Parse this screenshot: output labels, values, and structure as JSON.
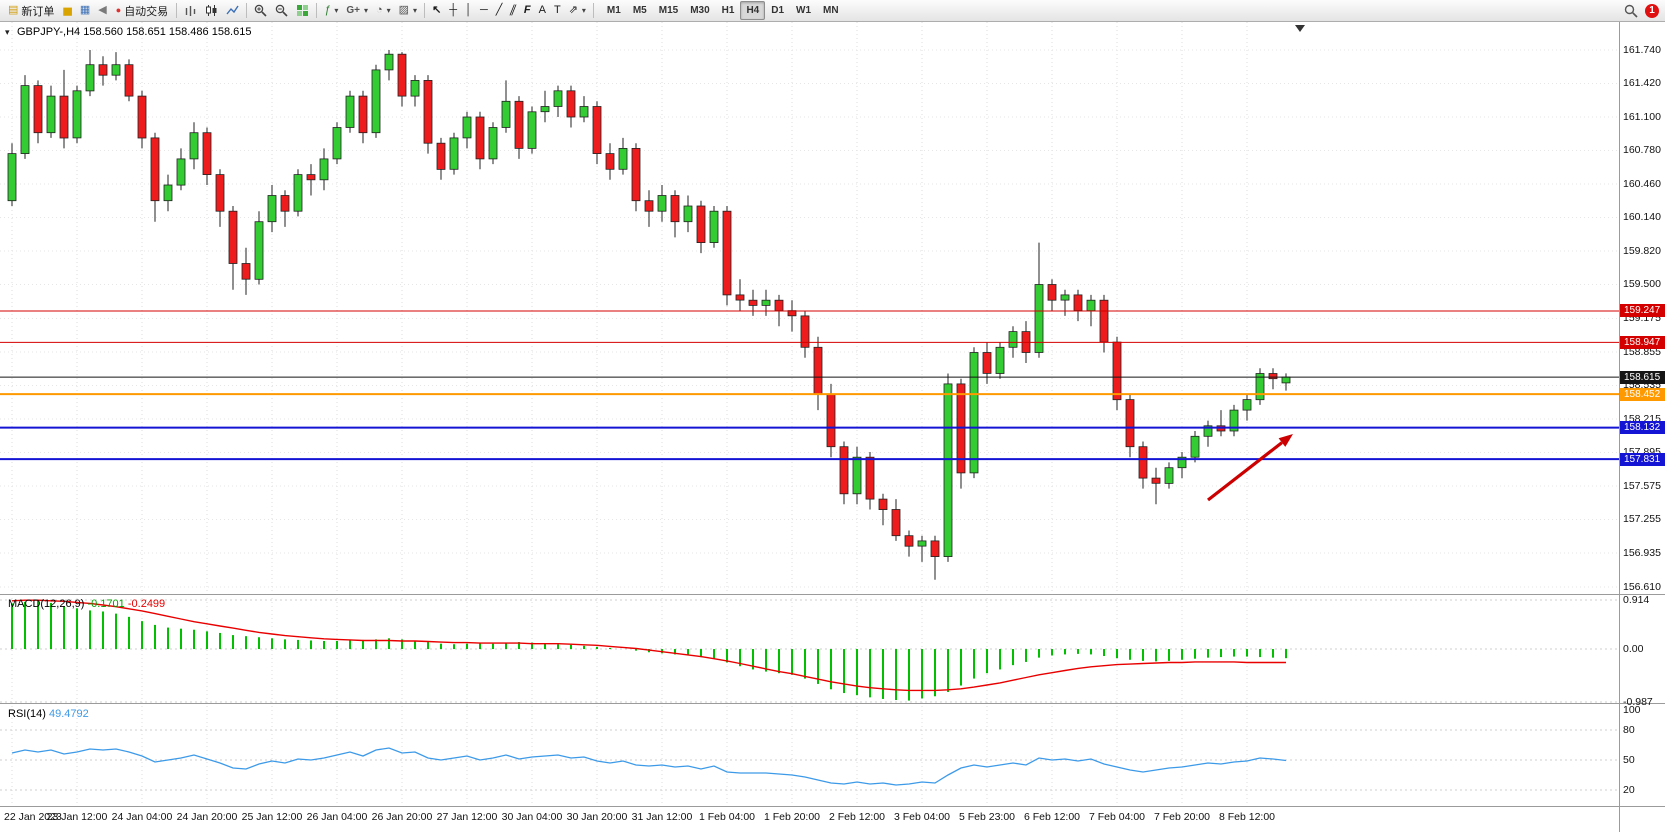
{
  "toolbar": {
    "new_order_label": "新订单",
    "autotrade_label": "自动交易",
    "timeframes": [
      "M1",
      "M5",
      "M15",
      "M30",
      "H1",
      "H4",
      "D1",
      "W1",
      "MN"
    ],
    "active_timeframe": "H4",
    "notification_count": "1"
  },
  "icons": {
    "dropdown": "▾",
    "title_triangle": "▾",
    "new_order": "▤",
    "gold": "▅",
    "market": "▦",
    "sound": "◀",
    "autotrade_dot": "●",
    "indicators": "ƒ",
    "gplus": "G+",
    "clock": "◔",
    "snapshot": "▨",
    "cursor": "↖",
    "crosshair": "┼",
    "vline": "│",
    "hline": "─",
    "trendline": "╱",
    "channel": "∥",
    "fibonacci": "F",
    "text": "A",
    "label": "T",
    "arrows": "⇗"
  },
  "chart": {
    "title_symbol": "GBPJPY-,H4",
    "title_ohlc": "158.560 158.651 158.486 158.615",
    "macd_name": "MACD(12,26,9)",
    "macd_value_1": "-0.1701",
    "macd_value_2": "-0.2499",
    "rsi_name": "RSI(14)",
    "rsi_value": "49.4792"
  },
  "colors": {
    "up_candle": "#33cc33",
    "down_candle": "#ee1c1c",
    "candle_outline": "#222222",
    "macd_hist": "#00c000",
    "macd_signal": "#e80000",
    "rsi_line": "#3d9ae8",
    "line_red": "#d40000",
    "line_blue": "#1414d4",
    "line_orange": "#ff9900",
    "line_current": "#151515",
    "arrow_red": "#cc0000"
  },
  "annotations": {
    "arrow": {
      "from": [
        1208,
        500
      ],
      "to": [
        1293,
        434
      ],
      "color": "#cc0000"
    }
  },
  "chart_data": [
    {
      "type": "candlestick",
      "symbol": "GBPJPY-",
      "timeframe": "H4",
      "ohlc_current": {
        "open": "158.560",
        "high": "158.651",
        "low": "158.486",
        "close": "158.615"
      },
      "ylim": [
        156.54,
        162.01
      ],
      "y_ticks": [
        "161.740",
        "161.420",
        "161.100",
        "160.780",
        "160.460",
        "160.140",
        "159.820",
        "159.500",
        "159.175",
        "158.855",
        "158.535",
        "158.215",
        "157.895",
        "157.575",
        "157.255",
        "156.935",
        "156.610"
      ],
      "x_labels": [
        "22 Jan 2023",
        "23 Jan 12:00",
        "24 Jan 04:00",
        "24 Jan 20:00",
        "25 Jan 12:00",
        "26 Jan 04:00",
        "26 Jan 20:00",
        "27 Jan 12:00",
        "30 Jan 04:00",
        "30 Jan 20:00",
        "31 Jan 12:00",
        "1 Feb 04:00",
        "1 Feb 20:00",
        "2 Feb 12:00",
        "3 Feb 04:00",
        "5 Feb 23:00",
        "6 Feb 12:00",
        "7 Feb 04:00",
        "7 Feb 20:00",
        "8 Feb 12:00"
      ],
      "price_lines": [
        {
          "label": "159.247",
          "price": 159.247,
          "color": "#d40000",
          "width": 1
        },
        {
          "label": "158.947",
          "price": 158.947,
          "color": "#d40000",
          "width": 1
        },
        {
          "label": "158.615",
          "price": 158.615,
          "color": "#151515",
          "width": 1
        },
        {
          "label": "158.452",
          "price": 158.452,
          "color": "#ff9900",
          "width": 2
        },
        {
          "label": "158.132",
          "price": 158.132,
          "color": "#1414d4",
          "width": 2
        },
        {
          "label": "157.831",
          "price": 157.831,
          "color": "#1414d4",
          "width": 2
        }
      ],
      "ohlc": [
        [
          160.3,
          160.85,
          160.25,
          160.75
        ],
        [
          160.75,
          161.5,
          160.7,
          161.4
        ],
        [
          161.4,
          161.45,
          160.85,
          160.95
        ],
        [
          160.95,
          161.4,
          160.9,
          161.3
        ],
        [
          161.3,
          161.55,
          160.8,
          160.9
        ],
        [
          160.9,
          161.4,
          160.85,
          161.35
        ],
        [
          161.35,
          161.74,
          161.3,
          161.6
        ],
        [
          161.6,
          161.68,
          161.4,
          161.5
        ],
        [
          161.5,
          161.72,
          161.45,
          161.6
        ],
        [
          161.6,
          161.65,
          161.25,
          161.3
        ],
        [
          161.3,
          161.35,
          160.8,
          160.9
        ],
        [
          160.9,
          160.95,
          160.1,
          160.3
        ],
        [
          160.3,
          160.55,
          160.2,
          160.45
        ],
        [
          160.45,
          160.8,
          160.4,
          160.7
        ],
        [
          160.7,
          161.05,
          160.6,
          160.95
        ],
        [
          160.95,
          161.0,
          160.45,
          160.55
        ],
        [
          160.55,
          160.6,
          160.05,
          160.2
        ],
        [
          160.2,
          160.25,
          159.45,
          159.7
        ],
        [
          159.7,
          159.85,
          159.4,
          159.55
        ],
        [
          159.55,
          160.2,
          159.5,
          160.1
        ],
        [
          160.1,
          160.45,
          160.0,
          160.35
        ],
        [
          160.35,
          160.4,
          160.05,
          160.2
        ],
        [
          160.2,
          160.6,
          160.15,
          160.55
        ],
        [
          160.55,
          160.65,
          160.35,
          160.5
        ],
        [
          160.5,
          160.8,
          160.4,
          160.7
        ],
        [
          160.7,
          161.05,
          160.65,
          161.0
        ],
        [
          161.0,
          161.35,
          160.95,
          161.3
        ],
        [
          161.3,
          161.35,
          160.85,
          160.95
        ],
        [
          160.95,
          161.6,
          160.9,
          161.55
        ],
        [
          161.55,
          161.74,
          161.45,
          161.7
        ],
        [
          161.7,
          161.72,
          161.2,
          161.3
        ],
        [
          161.3,
          161.5,
          161.2,
          161.45
        ],
        [
          161.45,
          161.5,
          160.75,
          160.85
        ],
        [
          160.85,
          160.9,
          160.5,
          160.6
        ],
        [
          160.6,
          160.95,
          160.55,
          160.9
        ],
        [
          160.9,
          161.15,
          160.8,
          161.1
        ],
        [
          161.1,
          161.15,
          160.6,
          160.7
        ],
        [
          160.7,
          161.05,
          160.65,
          161.0
        ],
        [
          161.0,
          161.45,
          160.95,
          161.25
        ],
        [
          161.25,
          161.3,
          160.7,
          160.8
        ],
        [
          160.8,
          161.2,
          160.75,
          161.15
        ],
        [
          161.15,
          161.35,
          161.05,
          161.2
        ],
        [
          161.2,
          161.4,
          161.1,
          161.35
        ],
        [
          161.35,
          161.4,
          161.0,
          161.1
        ],
        [
          161.1,
          161.3,
          161.05,
          161.2
        ],
        [
          161.2,
          161.25,
          160.65,
          160.75
        ],
        [
          160.75,
          160.85,
          160.5,
          160.6
        ],
        [
          160.6,
          160.9,
          160.55,
          160.8
        ],
        [
          160.8,
          160.85,
          160.2,
          160.3
        ],
        [
          160.3,
          160.4,
          160.05,
          160.2
        ],
        [
          160.2,
          160.45,
          160.1,
          160.35
        ],
        [
          160.35,
          160.4,
          159.95,
          160.1
        ],
        [
          160.1,
          160.35,
          160.0,
          160.25
        ],
        [
          160.25,
          160.3,
          159.8,
          159.9
        ],
        [
          159.9,
          160.25,
          159.85,
          160.2
        ],
        [
          160.2,
          160.25,
          159.3,
          159.4
        ],
        [
          159.4,
          159.55,
          159.25,
          159.35
        ],
        [
          159.35,
          159.45,
          159.2,
          159.3
        ],
        [
          159.3,
          159.45,
          159.2,
          159.35
        ],
        [
          159.35,
          159.4,
          159.1,
          159.25
        ],
        [
          159.25,
          159.35,
          159.05,
          159.2
        ],
        [
          159.2,
          159.25,
          158.8,
          158.9
        ],
        [
          158.9,
          159.0,
          158.3,
          158.45
        ],
        [
          158.45,
          158.55,
          157.85,
          157.95
        ],
        [
          157.95,
          158.0,
          157.4,
          157.5
        ],
        [
          157.5,
          157.95,
          157.4,
          157.85
        ],
        [
          157.85,
          157.9,
          157.35,
          157.45
        ],
        [
          157.45,
          157.5,
          157.2,
          157.35
        ],
        [
          157.35,
          157.45,
          157.05,
          157.1
        ],
        [
          157.1,
          157.15,
          156.9,
          157.0
        ],
        [
          157.0,
          157.1,
          156.85,
          157.05
        ],
        [
          157.05,
          157.1,
          156.68,
          156.9
        ],
        [
          156.9,
          158.65,
          156.85,
          158.55
        ],
        [
          158.55,
          158.6,
          157.55,
          157.7
        ],
        [
          157.7,
          158.9,
          157.65,
          158.85
        ],
        [
          158.85,
          158.95,
          158.55,
          158.65
        ],
        [
          158.65,
          158.95,
          158.6,
          158.9
        ],
        [
          158.9,
          159.1,
          158.8,
          159.05
        ],
        [
          159.05,
          159.15,
          158.75,
          158.85
        ],
        [
          158.85,
          159.9,
          158.8,
          159.5
        ],
        [
          159.5,
          159.55,
          159.25,
          159.35
        ],
        [
          159.35,
          159.45,
          159.2,
          159.4
        ],
        [
          159.4,
          159.45,
          159.15,
          159.25
        ],
        [
          159.25,
          159.4,
          159.1,
          159.35
        ],
        [
          159.35,
          159.4,
          158.85,
          158.95
        ],
        [
          158.95,
          159.0,
          158.3,
          158.4
        ],
        [
          158.4,
          158.45,
          157.85,
          157.95
        ],
        [
          157.95,
          158.0,
          157.55,
          157.65
        ],
        [
          157.65,
          157.75,
          157.4,
          157.6
        ],
        [
          157.6,
          157.8,
          157.55,
          157.75
        ],
        [
          157.75,
          157.9,
          157.65,
          157.85
        ],
        [
          157.85,
          158.1,
          157.8,
          158.05
        ],
        [
          158.05,
          158.2,
          157.95,
          158.15
        ],
        [
          158.15,
          158.3,
          158.05,
          158.1
        ],
        [
          158.1,
          158.35,
          158.05,
          158.3
        ],
        [
          158.3,
          158.45,
          158.2,
          158.4
        ],
        [
          158.4,
          158.7,
          158.35,
          158.65
        ],
        [
          158.65,
          158.7,
          158.5,
          158.6
        ],
        [
          158.56,
          158.651,
          158.486,
          158.615
        ]
      ]
    },
    {
      "type": "bar",
      "name": "MACD",
      "params": "(12,26,9)",
      "values_label": "-0.1701 -0.2499",
      "ylim": [
        -0.987,
        0.914
      ],
      "y_ticks": [
        "0.914",
        "0.00",
        "-0.987"
      ],
      "histogram": [
        0.85,
        0.88,
        0.9,
        0.86,
        0.8,
        0.76,
        0.72,
        0.7,
        0.66,
        0.6,
        0.52,
        0.45,
        0.4,
        0.38,
        0.36,
        0.33,
        0.3,
        0.26,
        0.24,
        0.22,
        0.2,
        0.18,
        0.17,
        0.16,
        0.15,
        0.15,
        0.16,
        0.17,
        0.18,
        0.2,
        0.18,
        0.15,
        0.13,
        0.1,
        0.09,
        0.1,
        0.11,
        0.1,
        0.12,
        0.13,
        0.12,
        0.1,
        0.09,
        0.08,
        0.06,
        0.04,
        0.02,
        0.0,
        -0.03,
        -0.06,
        -0.08,
        -0.1,
        -0.12,
        -0.15,
        -0.18,
        -0.25,
        -0.32,
        -0.38,
        -0.42,
        -0.45,
        -0.48,
        -0.55,
        -0.65,
        -0.75,
        -0.82,
        -0.86,
        -0.9,
        -0.93,
        -0.95,
        -0.96,
        -0.92,
        -0.88,
        -0.8,
        -0.68,
        -0.55,
        -0.45,
        -0.38,
        -0.3,
        -0.24,
        -0.16,
        -0.12,
        -0.1,
        -0.09,
        -0.1,
        -0.13,
        -0.17,
        -0.2,
        -0.22,
        -0.23,
        -0.22,
        -0.2,
        -0.18,
        -0.16,
        -0.15,
        -0.14,
        -0.14,
        -0.15,
        -0.16,
        -0.17
      ],
      "signal": [
        0.9,
        0.91,
        0.91,
        0.9,
        0.89,
        0.87,
        0.85,
        0.82,
        0.79,
        0.75,
        0.71,
        0.66,
        0.61,
        0.56,
        0.51,
        0.47,
        0.43,
        0.39,
        0.35,
        0.31,
        0.28,
        0.25,
        0.23,
        0.21,
        0.19,
        0.18,
        0.17,
        0.16,
        0.16,
        0.16,
        0.15,
        0.15,
        0.14,
        0.13,
        0.12,
        0.12,
        0.11,
        0.11,
        0.11,
        0.11,
        0.1,
        0.1,
        0.1,
        0.09,
        0.08,
        0.07,
        0.05,
        0.03,
        0.01,
        -0.02,
        -0.05,
        -0.08,
        -0.11,
        -0.14,
        -0.18,
        -0.22,
        -0.27,
        -0.32,
        -0.37,
        -0.42,
        -0.46,
        -0.51,
        -0.56,
        -0.61,
        -0.65,
        -0.69,
        -0.72,
        -0.74,
        -0.76,
        -0.77,
        -0.77,
        -0.77,
        -0.76,
        -0.74,
        -0.71,
        -0.67,
        -0.63,
        -0.58,
        -0.53,
        -0.48,
        -0.44,
        -0.4,
        -0.36,
        -0.33,
        -0.31,
        -0.29,
        -0.28,
        -0.27,
        -0.26,
        -0.25,
        -0.25,
        -0.24,
        -0.24,
        -0.24,
        -0.24,
        -0.25,
        -0.25,
        -0.25,
        -0.25
      ]
    },
    {
      "type": "line",
      "name": "RSI",
      "params": "(14)",
      "value_label": "49.4792",
      "ylim": [
        0,
        100
      ],
      "levels": [
        80,
        50,
        20
      ],
      "y_ticks": [
        "100",
        "80",
        "50",
        "20"
      ],
      "values": [
        57,
        60,
        58,
        60,
        56,
        58,
        61,
        60,
        61,
        58,
        54,
        48,
        50,
        52,
        55,
        51,
        47,
        42,
        41,
        46,
        49,
        47,
        51,
        50,
        52,
        55,
        58,
        54,
        60,
        62,
        57,
        58,
        52,
        50,
        52,
        54,
        50,
        52,
        55,
        51,
        53,
        54,
        55,
        52,
        53,
        49,
        47,
        49,
        45,
        44,
        45,
        43,
        44,
        41,
        44,
        38,
        37,
        37,
        37,
        36,
        35,
        33,
        30,
        27,
        26,
        28,
        26,
        27,
        25,
        26,
        28,
        27,
        35,
        42,
        45,
        43,
        45,
        47,
        45,
        52,
        50,
        51,
        49,
        51,
        46,
        43,
        40,
        38,
        40,
        42,
        43,
        45,
        47,
        46,
        48,
        49,
        52,
        51,
        49.48
      ]
    }
  ]
}
